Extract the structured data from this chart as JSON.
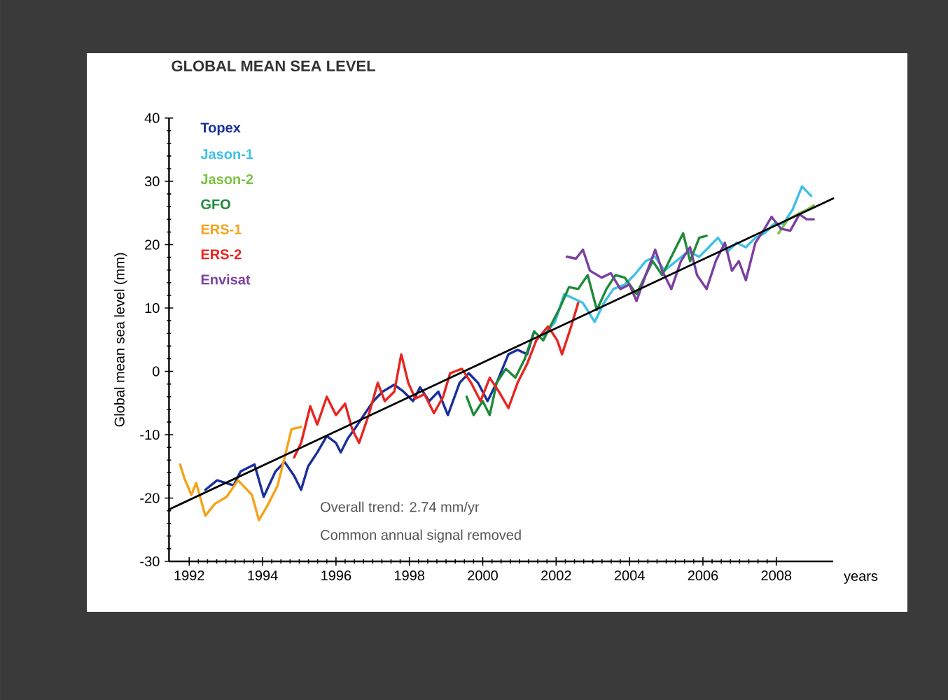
{
  "chart_data": {
    "type": "line",
    "title": "GLOBAL MEAN SEA LEVEL",
    "xlabel": "years",
    "ylabel": "Global mean sea level (mm)",
    "xlim": [
      1991.45,
      2009.55
    ],
    "ylim": [
      -30,
      40
    ],
    "xticks": [
      1992,
      1994,
      1996,
      1998,
      2000,
      2002,
      2004,
      2006,
      2008
    ],
    "yticks": [
      -30,
      -20,
      -10,
      0,
      10,
      20,
      30,
      40
    ],
    "legend": "top left",
    "line_style": "solid",
    "marker": "none",
    "annotations": [
      "Overall trend: 2.74 mm/yr",
      "Common annual signal removed"
    ],
    "series": [
      {
        "name": "Topex",
        "color": "#1a2f9c",
        "x": [
          1992.44,
          1992.76,
          1993.21,
          1993.4,
          1993.78,
          1994.03,
          1994.35,
          1994.6,
          1994.86,
          1995.05,
          1995.24,
          1995.49,
          1995.75,
          1996.0,
          1996.13,
          1996.32,
          1996.51,
          1996.76,
          1997.02,
          1997.27,
          1997.59,
          1997.84,
          1998.1,
          1998.29,
          1998.54,
          1998.79,
          1999.05,
          1999.37,
          1999.62,
          1999.87,
          2000.13,
          2000.38,
          2000.7,
          2000.95,
          2001.21,
          2001.4
        ],
        "values": [
          -18.7,
          -17.2,
          -18.0,
          -15.8,
          -14.7,
          -19.8,
          -15.8,
          -14.3,
          -16.5,
          -18.7,
          -15.0,
          -12.8,
          -10.2,
          -11.3,
          -12.8,
          -10.6,
          -9.1,
          -6.9,
          -4.7,
          -3.2,
          -2.1,
          -3.2,
          -4.7,
          -2.5,
          -4.7,
          -3.2,
          -6.9,
          -1.8,
          -0.3,
          -1.8,
          -4.7,
          -1.8,
          2.7,
          3.4,
          2.7,
          6.3
        ]
      },
      {
        "name": "Jason-1",
        "color": "#3cc0e8",
        "x": [
          2001.65,
          2001.97,
          2002.22,
          2002.48,
          2002.73,
          2003.05,
          2003.3,
          2003.56,
          2003.87,
          2004.13,
          2004.44,
          2004.7,
          2004.95,
          2005.27,
          2005.59,
          2005.9,
          2006.16,
          2006.41,
          2006.67,
          2006.92,
          2007.17,
          2007.43,
          2007.68,
          2007.94,
          2008.19,
          2008.44,
          2008.7,
          2008.95
        ],
        "values": [
          5.6,
          7.8,
          12.2,
          11.5,
          10.8,
          7.8,
          10.8,
          13.0,
          13.7,
          15.2,
          17.4,
          18.1,
          15.9,
          17.4,
          18.9,
          18.1,
          19.6,
          21.1,
          18.9,
          20.3,
          19.6,
          21.1,
          21.8,
          23.3,
          23.3,
          25.5,
          29.2,
          27.7
        ]
      },
      {
        "name": "Jason-2",
        "color": "#7cc242",
        "x": [
          2008.06,
          2008.32,
          2008.57,
          2008.83,
          2009.02
        ],
        "values": [
          21.8,
          24.0,
          24.8,
          25.5,
          26.2
        ]
      },
      {
        "name": "GFO",
        "color": "#1f8a3a",
        "x": [
          1999.56,
          1999.75,
          2000.0,
          2000.19,
          2000.38,
          2000.63,
          2000.89,
          2001.14,
          2001.4,
          2001.65,
          2001.84,
          2002.1,
          2002.35,
          2002.6,
          2002.86,
          2003.11,
          2003.37,
          2003.62,
          2003.87,
          2004.19,
          2004.44,
          2004.63,
          2004.89,
          2005.14,
          2005.46,
          2005.65,
          2005.9,
          2006.1
        ],
        "values": [
          -4.0,
          -6.9,
          -4.7,
          -6.9,
          -1.8,
          0.4,
          -1.0,
          1.9,
          6.3,
          4.9,
          7.1,
          10.0,
          13.3,
          13.0,
          15.2,
          9.7,
          13.0,
          15.2,
          14.8,
          12.2,
          15.2,
          17.4,
          15.2,
          18.1,
          21.8,
          17.4,
          21.1,
          21.4
        ]
      },
      {
        "name": "ERS-1",
        "color": "#f5a31a",
        "x": [
          1991.75,
          1991.87,
          1992.06,
          1992.19,
          1992.44,
          1992.7,
          1993.02,
          1993.33,
          1993.71,
          1993.9,
          1994.16,
          1994.41,
          1994.6,
          1994.79,
          1995.05
        ],
        "values": [
          -14.7,
          -16.9,
          -19.5,
          -17.6,
          -22.8,
          -20.9,
          -19.8,
          -17.2,
          -19.5,
          -23.5,
          -20.9,
          -18.0,
          -13.6,
          -9.1,
          -8.8
        ]
      },
      {
        "name": "ERS-2",
        "color": "#e8251f",
        "x": [
          1994.86,
          1995.05,
          1995.3,
          1995.49,
          1995.75,
          1996.0,
          1996.25,
          1996.44,
          1996.63,
          1996.89,
          1997.14,
          1997.33,
          1997.59,
          1997.78,
          1997.97,
          1998.16,
          1998.41,
          1998.67,
          1998.92,
          1999.11,
          1999.43,
          1999.68,
          1999.94,
          2000.19,
          2000.44,
          2000.7,
          2000.95,
          2001.21,
          2001.46,
          2001.78,
          2002.03,
          2002.16,
          2002.41,
          2002.6
        ],
        "values": [
          -13.6,
          -11.3,
          -5.5,
          -8.4,
          -4.0,
          -6.9,
          -5.1,
          -9.1,
          -11.3,
          -6.9,
          -1.8,
          -4.7,
          -3.2,
          2.7,
          -1.8,
          -4.3,
          -3.6,
          -6.6,
          -4.0,
          -0.3,
          0.4,
          -1.8,
          -4.7,
          -1.0,
          -3.2,
          -5.8,
          -1.8,
          1.2,
          4.9,
          7.1,
          4.9,
          2.7,
          7.1,
          10.8
        ]
      },
      {
        "name": "Envisat",
        "color": "#7b3fa0",
        "x": [
          2002.29,
          2002.54,
          2002.73,
          2002.92,
          2003.24,
          2003.49,
          2003.75,
          2004.0,
          2004.19,
          2004.44,
          2004.7,
          2004.89,
          2005.14,
          2005.4,
          2005.65,
          2005.84,
          2006.1,
          2006.35,
          2006.6,
          2006.79,
          2006.98,
          2007.17,
          2007.43,
          2007.68,
          2007.87,
          2008.13,
          2008.38,
          2008.63,
          2008.83,
          2009.02
        ],
        "values": [
          18.1,
          17.8,
          19.2,
          15.9,
          14.8,
          15.5,
          13.0,
          13.7,
          11.1,
          15.2,
          19.2,
          15.9,
          13.0,
          17.4,
          19.6,
          15.2,
          13.0,
          17.4,
          20.3,
          15.9,
          17.4,
          14.4,
          20.3,
          22.5,
          24.4,
          22.5,
          22.2,
          24.8,
          24.0,
          24.0
        ]
      },
      {
        "color": "#000000",
        "x": [
          1991.45,
          2009.55
        ],
        "values": [
          -21.8,
          27.3
        ]
      }
    ]
  }
}
